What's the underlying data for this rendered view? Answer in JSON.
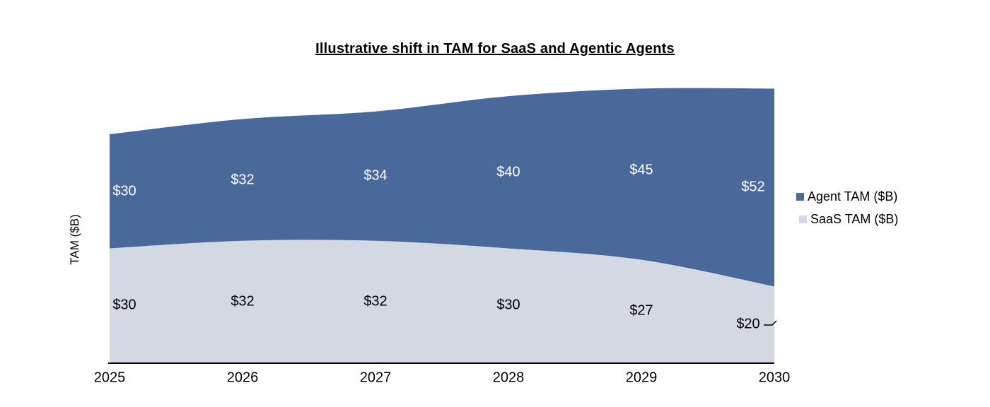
{
  "chart_data": {
    "type": "area",
    "stacked": true,
    "smooth_lines": true,
    "title": "Illustrative shift in TAM for SaaS and Agentic Agents",
    "xlabel": "",
    "ylabel": "TAM ($B)",
    "categories": [
      "2025",
      "2026",
      "2027",
      "2028",
      "2029",
      "2030"
    ],
    "series": [
      {
        "name": "SaaS TAM ($B)",
        "values": [
          30,
          32,
          32,
          30,
          27,
          20
        ],
        "data_labels": [
          "$30",
          "$32",
          "$32",
          "$30",
          "$27",
          "$20"
        ],
        "color": "#d3d8e3",
        "label_color": "#000000"
      },
      {
        "name": "Agent TAM ($B)",
        "values": [
          30,
          32,
          34,
          40,
          45,
          52
        ],
        "data_labels": [
          "$30",
          "$32",
          "$34",
          "$40",
          "$45",
          "$52"
        ],
        "color": "#4a699b",
        "label_color": "#ffffff"
      }
    ],
    "totals": [
      60,
      64,
      66,
      70,
      72,
      72
    ],
    "ylim": [
      0,
      80
    ],
    "gridlines": false,
    "legend_position": "right",
    "legend_order": [
      "Agent TAM ($B)",
      "SaaS TAM ($B)"
    ],
    "axis_line_color": "#000000",
    "last_saas_label_has_leader_line": true
  }
}
